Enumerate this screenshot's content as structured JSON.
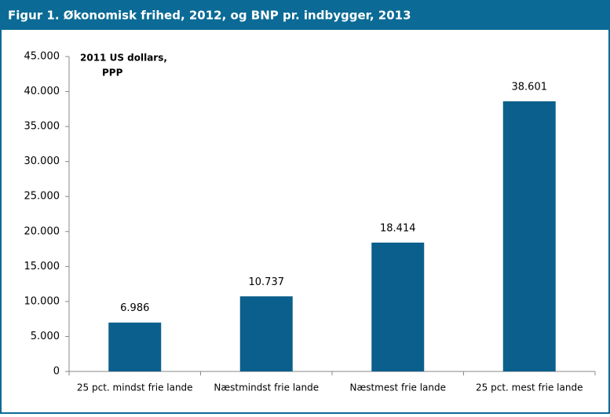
{
  "chart_data": {
    "type": "bar",
    "title": "Figur 1. Økonomisk frihed, 2012, og BNP pr. indbygger, 2013",
    "unit_label": [
      "2011 US dollars,",
      "PPP"
    ],
    "categories": [
      "25 pct. mindst frie lande",
      "Næstmindst frie lande",
      "Næstmest frie lande",
      "25 pct. mest frie lande"
    ],
    "values": [
      6986,
      10737,
      18414,
      38601
    ],
    "value_labels": [
      "6.986",
      "10.737",
      "18.414",
      "38.601"
    ],
    "color": "#0b5f8c",
    "ylim": [
      0,
      45000
    ],
    "yticks": [
      0,
      {
        "value": 5000,
        "label": "5.000"
      },
      {
        "value": 10000,
        "label": "10.000"
      },
      {
        "value": 15000,
        "label": "15.000"
      },
      {
        "value": 20000,
        "label": "20.000"
      },
      {
        "value": 25000,
        "label": "25.000"
      },
      {
        "value": 30000,
        "label": "30.000"
      },
      {
        "value": 35000,
        "label": "35.000"
      },
      {
        "value": 40000,
        "label": "40.000"
      },
      {
        "value": 45000,
        "label": "45.000"
      }
    ],
    "grid": false
  }
}
